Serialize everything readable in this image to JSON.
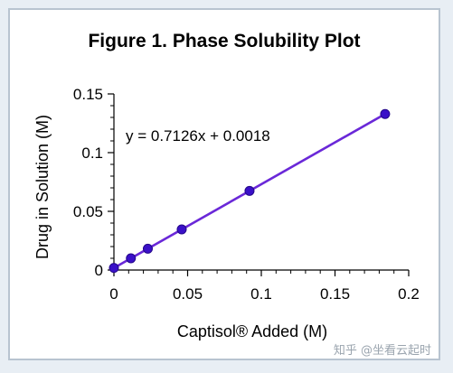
{
  "chart_data": {
    "type": "scatter",
    "title": "Figure 1.  Phase Solubility Plot",
    "xlabel": "Captisol® Added (M)",
    "ylabel": "Drug in Solution (M)",
    "xlim": [
      0,
      0.2
    ],
    "ylim": [
      0,
      0.15
    ],
    "x_ticks": [
      0,
      0.05,
      0.1,
      0.15,
      0.2
    ],
    "x_tick_labels": [
      "0",
      "0.05",
      "0.1",
      "0.15",
      "0.2"
    ],
    "y_ticks": [
      0,
      0.05,
      0.1,
      0.15
    ],
    "y_tick_labels": [
      "0",
      "0.05",
      "0.1",
      "0.15"
    ],
    "grid": false,
    "series": [
      {
        "x": [
          0,
          0.0115,
          0.023,
          0.046,
          0.092,
          0.184
        ],
        "y": [
          0.0018,
          0.01,
          0.0182,
          0.0346,
          0.0674,
          0.1329
        ],
        "color": "#3a10c8"
      }
    ],
    "trendline": {
      "slope": 0.7126,
      "intercept": 0.0018,
      "x_range": [
        0,
        0.184
      ],
      "color": "#6a28d8"
    },
    "annotation": "y = 0.7126x + 0.0018"
  },
  "watermark": "知乎 @坐看云起时"
}
